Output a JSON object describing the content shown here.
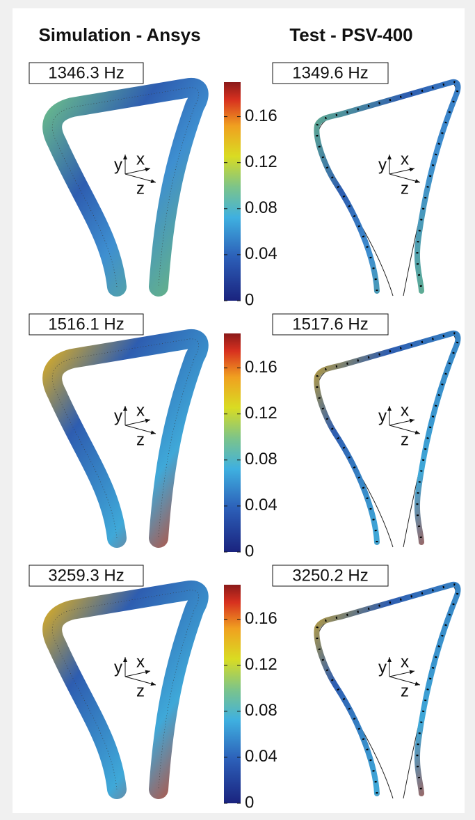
{
  "header": {
    "left": "Simulation - Ansys",
    "right": "Test - PSV-400"
  },
  "triad": {
    "x": "x",
    "y": "y",
    "z": "z"
  },
  "colorbar": {
    "lim": [
      0,
      0.19
    ],
    "ticks": [
      0,
      0.04,
      0.08,
      0.12,
      0.16
    ]
  },
  "rows": [
    {
      "simulation": "1346.3 Hz",
      "test": "1349.6 Hz"
    },
    {
      "simulation": "1516.1 Hz",
      "test": "1517.6 Hz"
    },
    {
      "simulation": "3259.3 Hz",
      "test": "3250.2 Hz"
    }
  ]
}
